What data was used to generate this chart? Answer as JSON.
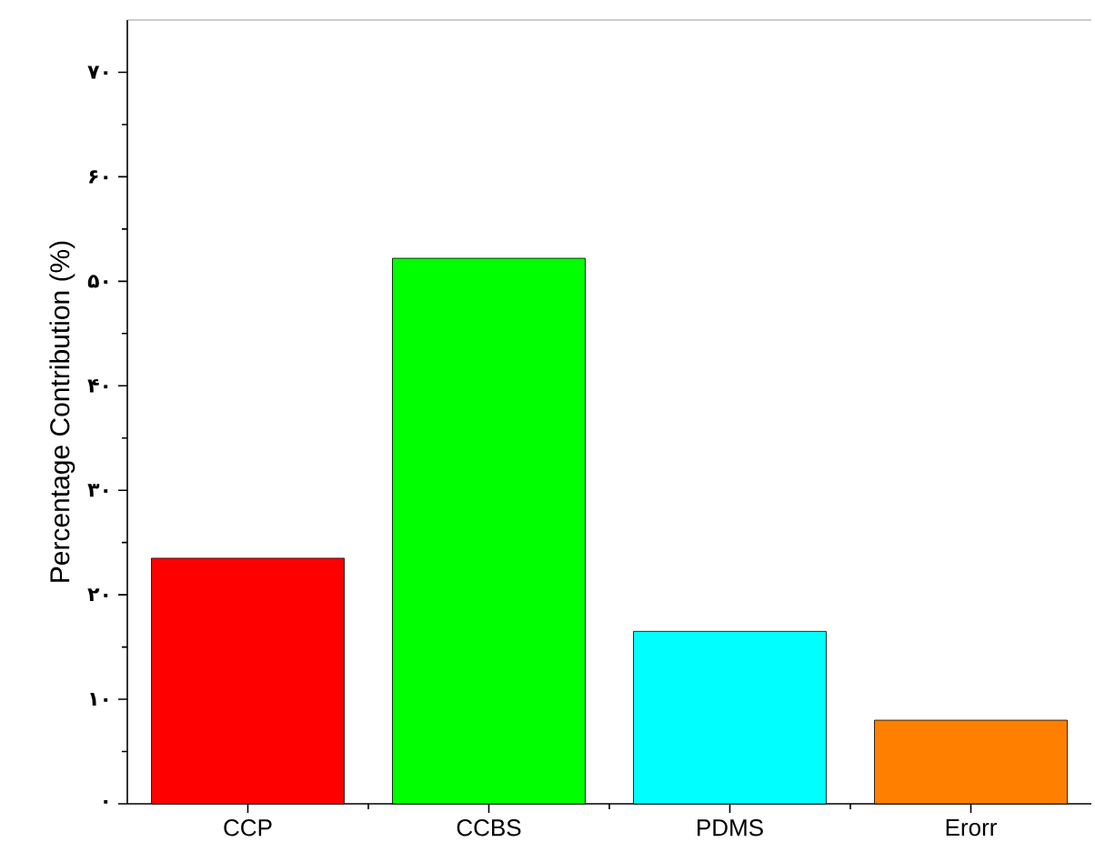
{
  "chart_data": {
    "type": "bar",
    "ylabel": "Percentage Contribution (%)",
    "categories": [
      "CCP",
      "CCBS",
      "PDMS",
      "Erorr"
    ],
    "values": [
      23.5,
      52.2,
      16.5,
      8.0
    ],
    "colors": [
      "#ff0000",
      "#00ff00",
      "#00ffff",
      "#ff8000"
    ],
    "ylim": [
      0,
      75
    ],
    "yticks": [
      {
        "value": 0,
        "label": "۰"
      },
      {
        "value": 10,
        "label": "۱۰"
      },
      {
        "value": 20,
        "label": "۲۰"
      },
      {
        "value": 30,
        "label": "۳۰"
      },
      {
        "value": 40,
        "label": "۴۰"
      },
      {
        "value": 50,
        "label": "۵۰"
      },
      {
        "value": 60,
        "label": "۶۰"
      },
      {
        "value": 70,
        "label": "۷۰"
      }
    ],
    "grid": false
  }
}
